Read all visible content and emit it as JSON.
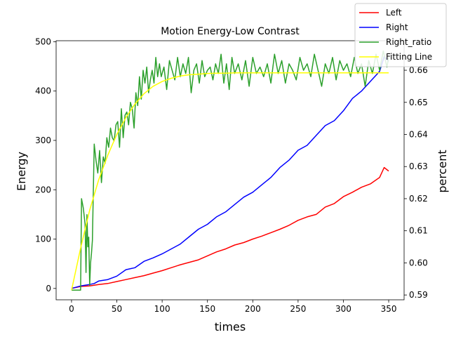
{
  "chart_data": {
    "type": "line",
    "title": "Motion Energy-Low Contrast",
    "xlabel": "times",
    "ylabel": "Energy",
    "ylabel_right": "percent",
    "xlim": [
      -17,
      367
    ],
    "ylim": [
      -23,
      502
    ],
    "ylim_right": [
      0.5885,
      0.6692
    ],
    "x_ticks": [
      0,
      50,
      100,
      150,
      200,
      250,
      300,
      350
    ],
    "y_ticks": [
      0,
      100,
      200,
      300,
      400,
      500
    ],
    "y_ticks_right": [
      "0.59",
      "0.60",
      "0.61",
      "0.62",
      "0.63",
      "0.64",
      "0.65",
      "0.66"
    ],
    "legend_position": "top-right",
    "legend": [
      "Left",
      "Right",
      "Right_ratio",
      "Fitting Line"
    ],
    "colors": {
      "Left": "#ff0000",
      "Right": "#0000ff",
      "Right_ratio": "#2ca02c",
      "Fitting Line": "#ffff00"
    },
    "series": [
      {
        "name": "Left",
        "axis": "left",
        "x": [
          0,
          10,
          20,
          30,
          40,
          50,
          60,
          70,
          80,
          90,
          100,
          110,
          120,
          130,
          140,
          150,
          160,
          170,
          180,
          190,
          200,
          210,
          220,
          230,
          240,
          250,
          260,
          270,
          280,
          290,
          300,
          310,
          320,
          330,
          340,
          345,
          350
        ],
        "y": [
          0,
          4,
          5,
          8,
          10,
          14,
          18,
          22,
          26,
          31,
          36,
          42,
          48,
          53,
          58,
          66,
          74,
          80,
          88,
          93,
          100,
          106,
          113,
          120,
          128,
          138,
          145,
          150,
          165,
          172,
          186,
          195,
          205,
          212,
          225,
          245,
          238
        ]
      },
      {
        "name": "Right",
        "axis": "left",
        "x": [
          0,
          10,
          20,
          25,
          30,
          40,
          50,
          60,
          70,
          80,
          90,
          100,
          110,
          120,
          130,
          140,
          150,
          160,
          170,
          180,
          190,
          200,
          210,
          220,
          230,
          240,
          250,
          260,
          270,
          280,
          290,
          300,
          310,
          320,
          330,
          340,
          345,
          350
        ],
        "y": [
          0,
          5,
          8,
          10,
          15,
          18,
          25,
          38,
          42,
          55,
          62,
          70,
          80,
          90,
          105,
          120,
          130,
          145,
          155,
          170,
          185,
          195,
          210,
          225,
          245,
          260,
          280,
          290,
          310,
          330,
          340,
          360,
          385,
          400,
          420,
          440,
          470,
          460
        ]
      },
      {
        "name": "Right_ratio",
        "axis": "right",
        "x": [
          0,
          5,
          8,
          10,
          11,
          13,
          15,
          16,
          17,
          18,
          19,
          20,
          21,
          22,
          23,
          25,
          27,
          29,
          31,
          33,
          35,
          37,
          39,
          41,
          43,
          45,
          47,
          49,
          51,
          53,
          55,
          57,
          59,
          61,
          63,
          65,
          67,
          69,
          71,
          73,
          75,
          77,
          79,
          81,
          83,
          85,
          87,
          89,
          91,
          93,
          95,
          97,
          99,
          102,
          105,
          108,
          111,
          114,
          117,
          120,
          123,
          126,
          129,
          132,
          135,
          138,
          141,
          144,
          147,
          150,
          153,
          156,
          159,
          162,
          165,
          168,
          171,
          174,
          177,
          180,
          184,
          188,
          192,
          196,
          200,
          204,
          208,
          212,
          216,
          220,
          224,
          228,
          232,
          236,
          240,
          244,
          248,
          252,
          256,
          260,
          264,
          268,
          272,
          276,
          280,
          284,
          288,
          292,
          296,
          300,
          304,
          308,
          312,
          316,
          320,
          324,
          328,
          332,
          336,
          340,
          344,
          348,
          350
        ],
        "y": [
          0.5915,
          0.5915,
          0.5915,
          0.5915,
          0.62,
          0.617,
          0.612,
          0.597,
          0.615,
          0.605,
          0.608,
          0.593,
          0.6,
          0.603,
          0.607,
          0.637,
          0.632,
          0.628,
          0.635,
          0.625,
          0.633,
          0.631,
          0.639,
          0.636,
          0.642,
          0.639,
          0.638,
          0.643,
          0.644,
          0.636,
          0.648,
          0.639,
          0.646,
          0.647,
          0.643,
          0.65,
          0.648,
          0.642,
          0.653,
          0.649,
          0.658,
          0.651,
          0.66,
          0.656,
          0.661,
          0.653,
          0.657,
          0.66,
          0.656,
          0.664,
          0.658,
          0.662,
          0.658,
          0.661,
          0.654,
          0.663,
          0.66,
          0.657,
          0.664,
          0.658,
          0.662,
          0.659,
          0.664,
          0.653,
          0.66,
          0.662,
          0.656,
          0.663,
          0.658,
          0.66,
          0.661,
          0.657,
          0.662,
          0.659,
          0.665,
          0.656,
          0.662,
          0.654,
          0.664,
          0.659,
          0.662,
          0.657,
          0.663,
          0.655,
          0.664,
          0.659,
          0.661,
          0.658,
          0.662,
          0.656,
          0.665,
          0.659,
          0.663,
          0.656,
          0.662,
          0.66,
          0.657,
          0.664,
          0.66,
          0.662,
          0.658,
          0.665,
          0.66,
          0.655,
          0.662,
          0.659,
          0.664,
          0.657,
          0.663,
          0.66,
          0.662,
          0.658,
          0.664,
          0.659,
          0.662,
          0.655,
          0.663,
          0.659,
          0.665,
          0.66,
          0.666,
          0.661,
          0.664
        ]
      },
      {
        "name": "Fitting Line",
        "axis": "right",
        "x": [
          0,
          10,
          20,
          30,
          40,
          50,
          60,
          70,
          80,
          90,
          100,
          110,
          120,
          130,
          140,
          150,
          160,
          170,
          180,
          190,
          200,
          225,
          250,
          275,
          300,
          325,
          350
        ],
        "y": [
          0.5915,
          0.6046,
          0.6164,
          0.6259,
          0.6335,
          0.64,
          0.6453,
          0.6495,
          0.6527,
          0.655,
          0.6565,
          0.6575,
          0.6582,
          0.6586,
          0.6588,
          0.659,
          0.6591,
          0.6591,
          0.6592,
          0.6592,
          0.6592,
          0.6592,
          0.6592,
          0.6592,
          0.6592,
          0.6592,
          0.6592
        ]
      }
    ]
  }
}
